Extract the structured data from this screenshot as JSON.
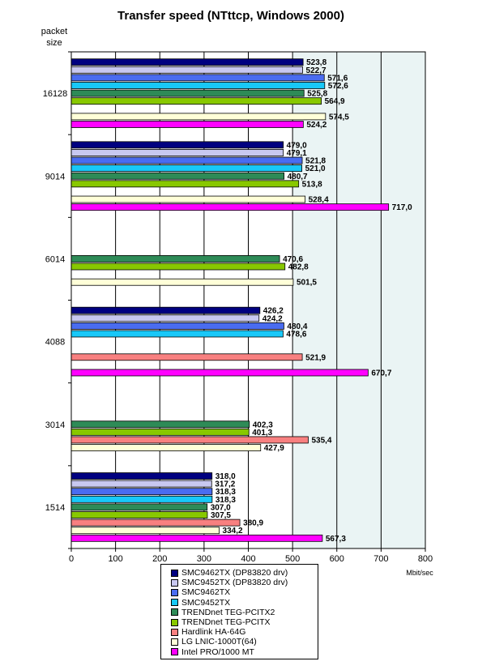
{
  "chart_data": {
    "type": "bar",
    "orientation": "horizontal",
    "title": "Transfer speed (NTttcp, Windows 2000)",
    "ylabel_lines": [
      "packet",
      "size"
    ],
    "xlabel": "Mbit/sec",
    "xlim": [
      0,
      800
    ],
    "xticks": [
      "0",
      "100",
      "200",
      "300",
      "400",
      "500",
      "600",
      "700",
      "800"
    ],
    "grid": true,
    "legend_position": "bottom",
    "categories": [
      "16128",
      "9014",
      "6014",
      "4088",
      "3014",
      "1514"
    ],
    "series": [
      {
        "name": "SMC9462TX (DP83820 drv)",
        "color": "#000080",
        "values": [
          523.8,
          479.0,
          null,
          426.2,
          null,
          318.0
        ],
        "labels": [
          "523,8",
          "479,0",
          null,
          "426,2",
          null,
          "318,0"
        ]
      },
      {
        "name": "SMC9452TX (DP83820 drv)",
        "color": "#c8c8f0",
        "values": [
          522.7,
          479.1,
          null,
          424.2,
          null,
          317.2
        ],
        "labels": [
          "522,7",
          "479,1",
          null,
          "424,2",
          null,
          "317,2"
        ]
      },
      {
        "name": "SMC9462TX",
        "color": "#4a6cf0",
        "values": [
          571.6,
          521.8,
          null,
          480.4,
          null,
          318.3
        ],
        "labels": [
          "571,6",
          "521,8",
          null,
          "480,4",
          null,
          "318,3"
        ]
      },
      {
        "name": "SMC9452TX",
        "color": "#18c8f8",
        "values": [
          572.6,
          521.0,
          null,
          478.6,
          null,
          318.3
        ],
        "labels": [
          "572,6",
          "521,0",
          null,
          "478,6",
          null,
          "318,3"
        ]
      },
      {
        "name": "TRENDnet TEG-PCITX2",
        "color": "#2e8b57",
        "values": [
          525.8,
          480.7,
          470.6,
          null,
          402.3,
          307.0
        ],
        "labels": [
          "525,8",
          "480,7",
          "470,6",
          null,
          "402,3",
          "307,0"
        ]
      },
      {
        "name": "TRENDnet TEG-PCITX",
        "color": "#88c800",
        "values": [
          564.9,
          513.8,
          482.8,
          null,
          401.3,
          307.5
        ],
        "labels": [
          "564,9",
          "513,8",
          "482,8",
          null,
          "401,3",
          "307,5"
        ]
      },
      {
        "name": "Hardlink HA-64G",
        "color": "#f88080",
        "values": [
          null,
          null,
          null,
          521.9,
          535.4,
          380.9
        ],
        "labels": [
          null,
          null,
          null,
          "521,9",
          "535,4",
          "380,9"
        ]
      },
      {
        "name": "LG LNIC-1000T(64)",
        "color": "#ffffd8",
        "values": [
          574.5,
          528.4,
          501.5,
          null,
          427.9,
          334.2
        ],
        "labels": [
          "574,5",
          "528,4",
          "501,5",
          null,
          "427,9",
          "334,2"
        ]
      },
      {
        "name": "Intel PRO/1000 MT",
        "color": "#ff00ff",
        "values": [
          524.2,
          717.0,
          null,
          670.7,
          null,
          567.3
        ],
        "labels": [
          "524,2",
          "717,0",
          null,
          "670,7",
          null,
          "567,3"
        ]
      }
    ]
  }
}
